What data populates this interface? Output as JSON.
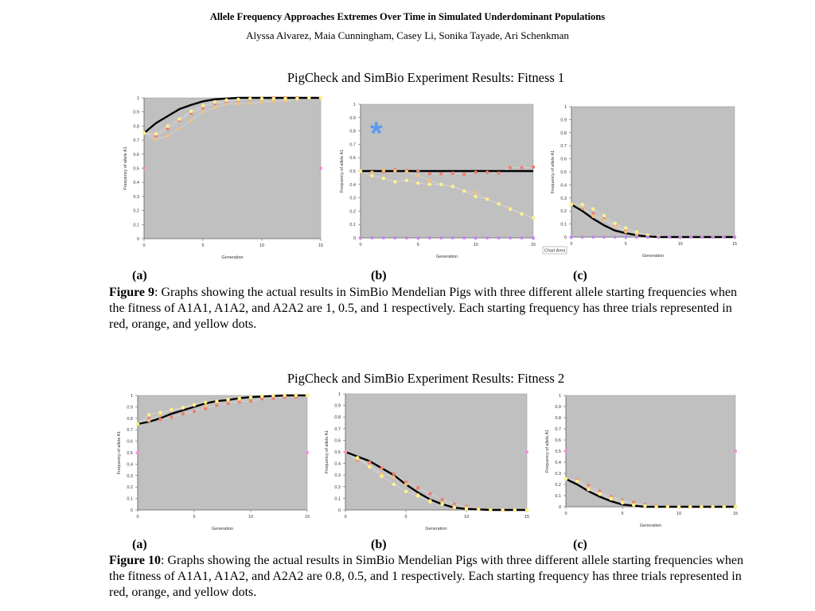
{
  "header": {
    "title": "Allele Frequency Approaches Extremes Over Time in Simulated Underdominant  Populations",
    "authors": "Alyssa Alvarez, Maia Cunningham, Casey Li, Sonika Tayade, Ari Schenkman"
  },
  "figure9": {
    "title": "PigCheck and SimBio Experiment Results: Fitness 1",
    "labels": [
      "(a)",
      "(b)",
      "(c)"
    ],
    "caption_label": "Figure 9",
    "caption": ": Graphs showing the actual results in SimBio Mendelian Pigs with three different allele starting frequencies when the fitness of A1A1, A1A2, and A2A2 are 1, 0.5, and 1 respectively. Each starting frequency has three trials represented in red, orange, and yellow dots."
  },
  "figure10": {
    "title": "PigCheck and SimBio Experiment Results: Fitness 2",
    "labels": [
      "(a)",
      "(b)",
      "(c)"
    ],
    "caption_label": "Figure 10",
    "caption": ": Graphs showing the actual results in SimBio Mendelian Pigs with three different allele starting frequencies when the fitness of A1A1, A1A2, and A2A2 are 0.8, 0.5, and 1 respectively. Each starting frequency has three trials represented in red, orange, and yellow dots."
  },
  "colors": {
    "plot_bg": "#c0c0c0",
    "model": "#000000",
    "red": "#ee7f6f",
    "orange": "#f3c07a",
    "yellow": "#fff28a",
    "pink": "#f58ad8",
    "purple": "#c585f2",
    "asterisk": "#5b9cf0"
  },
  "chart_data": [
    {
      "id": "fig9a",
      "type": "scatter",
      "xlabel": "Generation",
      "ylabel": "Frequency of allele A1",
      "xlim": [
        0,
        15
      ],
      "ylim": [
        0,
        1
      ],
      "xticks": [
        "0",
        "5",
        "10",
        "15"
      ],
      "yticks": [
        "0",
        "0.1",
        "0.2",
        "0.3",
        "0.4",
        "0.5",
        "0.6",
        "0.7",
        "0.8",
        "0.9",
        "1"
      ],
      "series": [
        {
          "name": "model",
          "kind": "line",
          "values": [
            0.75,
            0.82,
            0.87,
            0.92,
            0.95,
            0.975,
            0.99,
            0.995,
            1,
            1,
            1,
            1,
            1,
            1,
            1,
            1
          ]
        },
        {
          "name": "red",
          "kind": "dots",
          "values": [
            0.75,
            0.73,
            0.78,
            0.84,
            0.89,
            0.93,
            0.96,
            0.97,
            0.985,
            0.99,
            0.995,
            1,
            1,
            1,
            1,
            1
          ]
        },
        {
          "name": "orange",
          "kind": "dots",
          "values": [
            0.75,
            0.705,
            0.73,
            0.78,
            0.84,
            0.9,
            0.93,
            0.955,
            0.96,
            0.96,
            0.97,
            0.975,
            0.98,
            0.99,
            1,
            1
          ]
        },
        {
          "name": "yellow",
          "kind": "dots",
          "values": [
            0.75,
            0.745,
            0.8,
            0.85,
            0.905,
            0.945,
            0.97,
            0.985,
            0.99,
            0.995,
            0.995,
            0.995,
            0.995,
            0.995,
            1,
            1
          ]
        },
        {
          "name": "pink",
          "kind": "markers",
          "x": [
            0,
            15
          ],
          "values": [
            0.5,
            0.5
          ]
        }
      ]
    },
    {
      "id": "fig9b",
      "type": "scatter",
      "xlabel": "Generation",
      "ylabel": "Frequency of allele A1",
      "xlim": [
        0,
        15
      ],
      "ylim": [
        0,
        1
      ],
      "xticks": [
        "0",
        "5",
        "10",
        "15"
      ],
      "yticks": [
        "0",
        "0.1",
        "0.2",
        "0.3",
        "0.4",
        "0.5",
        "0.6",
        "0.7",
        "0.8",
        "0.9",
        "1"
      ],
      "annotation": "*",
      "series": [
        {
          "name": "model",
          "kind": "line",
          "values": [
            0.5,
            0.5,
            0.5,
            0.5,
            0.5,
            0.5,
            0.5,
            0.5,
            0.5,
            0.5,
            0.5,
            0.5,
            0.5,
            0.5,
            0.5,
            0.5
          ]
        },
        {
          "name": "red",
          "kind": "dots",
          "values": [
            0.5,
            0.49,
            0.495,
            0.51,
            0.505,
            0.5,
            0.48,
            0.48,
            0.485,
            0.475,
            0.49,
            0.49,
            0.485,
            0.525,
            0.525,
            0.53
          ]
        },
        {
          "name": "orange",
          "kind": "dots",
          "values": [
            0.5,
            0.49,
            0.505,
            0.5,
            0.495,
            0.465,
            0.43,
            0.4,
            0.385,
            0.35,
            0.34,
            0.29,
            0.255,
            0.22,
            0.18,
            0.15
          ]
        },
        {
          "name": "yellow",
          "kind": "dots",
          "values": [
            0.5,
            0.465,
            0.445,
            0.42,
            0.43,
            0.41,
            0.4,
            0.4,
            0.385,
            0.35,
            0.31,
            0.29,
            0.255,
            0.215,
            0.18,
            0.15
          ]
        },
        {
          "name": "purple",
          "kind": "markers",
          "x": [
            0,
            1,
            2,
            3,
            4,
            5,
            6,
            7,
            8,
            9,
            10,
            11,
            12,
            13,
            14,
            15
          ],
          "values": [
            0,
            0,
            0,
            0,
            0,
            0,
            0,
            0,
            0,
            0,
            0,
            0,
            0,
            0,
            0,
            0
          ]
        }
      ]
    },
    {
      "id": "fig9c",
      "type": "scatter",
      "xlabel": "Generation",
      "ylabel": "Frequency of allele A1",
      "xlim": [
        0,
        15
      ],
      "ylim": [
        0,
        1
      ],
      "xticks": [
        "0",
        "5",
        "10",
        "15"
      ],
      "yticks": [
        "0",
        "0.1",
        "0.2",
        "0.3",
        "0.4",
        "0.5",
        "0.6",
        "0.7",
        "0.8",
        "0.9",
        "1"
      ],
      "tooltip": "Chart Area",
      "series": [
        {
          "name": "model",
          "kind": "line",
          "values": [
            0.25,
            0.2,
            0.14,
            0.09,
            0.05,
            0.03,
            0.015,
            0.005,
            0,
            0,
            0,
            0,
            0,
            0,
            0,
            0
          ]
        },
        {
          "name": "red",
          "kind": "dots",
          "values": [
            0.25,
            0.22,
            0.18,
            0.14,
            0.09,
            0.05,
            0.03,
            0.01,
            0,
            0,
            0,
            0,
            0,
            0,
            0,
            0
          ]
        },
        {
          "name": "orange",
          "kind": "dots",
          "values": [
            0.25,
            0.23,
            0.16,
            0.13,
            0.08,
            0.04,
            0.02,
            0.01,
            0,
            0,
            0,
            0,
            0,
            0,
            0,
            0
          ]
        },
        {
          "name": "yellow",
          "kind": "dots",
          "values": [
            0.25,
            0.25,
            0.215,
            0.165,
            0.105,
            0.07,
            0.04,
            0.015,
            0.005,
            0,
            0,
            0,
            0,
            0,
            0,
            0
          ]
        },
        {
          "name": "purple",
          "kind": "markers",
          "x": [
            0,
            1,
            2,
            3,
            4,
            5,
            6,
            7,
            8,
            9,
            10,
            11,
            12,
            13,
            14,
            15
          ],
          "values": [
            0,
            0,
            0,
            0,
            0,
            0,
            0,
            0,
            0,
            0,
            0,
            0,
            0,
            0,
            0,
            0
          ]
        }
      ]
    },
    {
      "id": "fig10a",
      "type": "scatter",
      "xlabel": "Generation",
      "ylabel": "Frequency of allele A1",
      "xlim": [
        0,
        15
      ],
      "ylim": [
        0,
        1
      ],
      "xticks": [
        "0",
        "5",
        "10",
        "15"
      ],
      "yticks": [
        "0",
        "0.1",
        "0.2",
        "0.3",
        "0.4",
        "0.5",
        "0.6",
        "0.7",
        "0.8",
        "0.9",
        "1"
      ],
      "series": [
        {
          "name": "model",
          "kind": "line",
          "values": [
            0.75,
            0.77,
            0.8,
            0.84,
            0.87,
            0.9,
            0.93,
            0.95,
            0.96,
            0.975,
            0.985,
            0.99,
            0.995,
            1,
            1,
            1
          ]
        },
        {
          "name": "red",
          "kind": "dots",
          "values": [
            0.75,
            0.8,
            0.79,
            0.81,
            0.84,
            0.86,
            0.885,
            0.915,
            0.93,
            0.945,
            0.95,
            0.97,
            0.975,
            0.985,
            0.985,
            1
          ]
        },
        {
          "name": "orange",
          "kind": "dots",
          "values": [
            0.75,
            0.78,
            0.83,
            0.87,
            0.89,
            0.915,
            0.91,
            0.94,
            0.955,
            0.965,
            0.98,
            0.99,
            0.995,
            1,
            1,
            1
          ]
        },
        {
          "name": "yellow",
          "kind": "dots",
          "values": [
            0.75,
            0.83,
            0.85,
            0.875,
            0.895,
            0.92,
            0.94,
            0.95,
            0.965,
            0.975,
            0.985,
            0.995,
            1,
            1,
            1,
            1
          ]
        },
        {
          "name": "pink",
          "kind": "markers",
          "x": [
            0,
            15
          ],
          "values": [
            0.5,
            0.5
          ]
        }
      ]
    },
    {
      "id": "fig10b",
      "type": "scatter",
      "xlabel": "Generation",
      "ylabel": "Frequency of allele A1",
      "xlim": [
        0,
        15
      ],
      "ylim": [
        0,
        1
      ],
      "xticks": [
        "0",
        "5",
        "10",
        "15"
      ],
      "yticks": [
        "0",
        "0.1",
        "0.2",
        "0.3",
        "0.4",
        "0.5",
        "0.6",
        "0.7",
        "0.8",
        "0.9",
        "1"
      ],
      "series": [
        {
          "name": "model",
          "kind": "line",
          "values": [
            0.5,
            0.46,
            0.42,
            0.36,
            0.3,
            0.22,
            0.15,
            0.09,
            0.05,
            0.02,
            0.01,
            0.005,
            0,
            0,
            0,
            0
          ]
        },
        {
          "name": "red",
          "kind": "dots",
          "values": [
            0.5,
            0.43,
            0.41,
            0.36,
            0.31,
            0.24,
            0.19,
            0.14,
            0.09,
            0.05,
            0.03,
            0.01,
            0.005,
            0,
            0,
            0
          ]
        },
        {
          "name": "orange",
          "kind": "dots",
          "values": [
            0.5,
            0.44,
            0.38,
            0.31,
            0.28,
            0.22,
            0.13,
            0.08,
            0.06,
            0.03,
            0.02,
            0.01,
            0.005,
            0,
            0,
            0
          ]
        },
        {
          "name": "yellow",
          "kind": "dots",
          "values": [
            0.5,
            0.45,
            0.37,
            0.29,
            0.22,
            0.16,
            0.12,
            0.07,
            0.05,
            0.02,
            0.01,
            0.005,
            0,
            0,
            0,
            0
          ]
        },
        {
          "name": "pink",
          "kind": "markers",
          "x": [
            0,
            15
          ],
          "values": [
            0.5,
            0.5
          ]
        }
      ]
    },
    {
      "id": "fig10c",
      "type": "scatter",
      "xlabel": "Generation",
      "ylabel": "Frequency of allele A1",
      "xlim": [
        0,
        15
      ],
      "ylim": [
        0,
        1
      ],
      "xticks": [
        "0",
        "5",
        "10",
        "15"
      ],
      "yticks": [
        "0",
        "0.1",
        "0.2",
        "0.3",
        "0.4",
        "0.5",
        "0.6",
        "0.7",
        "0.8",
        "0.9",
        "1"
      ],
      "series": [
        {
          "name": "model",
          "kind": "line",
          "values": [
            0.25,
            0.2,
            0.14,
            0.09,
            0.05,
            0.02,
            0.01,
            0,
            0,
            0,
            0,
            0,
            0,
            0,
            0,
            0
          ]
        },
        {
          "name": "red",
          "kind": "dots",
          "values": [
            0.25,
            0.24,
            0.19,
            0.14,
            0.09,
            0.06,
            0.04,
            0.02,
            0.005,
            0,
            0,
            0,
            0,
            0,
            0,
            0
          ]
        },
        {
          "name": "orange",
          "kind": "dots",
          "values": [
            0.25,
            0.23,
            0.17,
            0.12,
            0.07,
            0.05,
            0.02,
            0.01,
            0,
            0,
            0,
            0,
            0,
            0,
            0,
            0
          ]
        },
        {
          "name": "yellow",
          "kind": "dots",
          "values": [
            0.25,
            0.23,
            0.155,
            0.115,
            0.075,
            0.035,
            0.015,
            0.005,
            0,
            0,
            0,
            0,
            0,
            0,
            0,
            0
          ]
        },
        {
          "name": "pink",
          "kind": "markers",
          "x": [
            0,
            15
          ],
          "values": [
            0.5,
            0.5
          ]
        }
      ]
    }
  ]
}
